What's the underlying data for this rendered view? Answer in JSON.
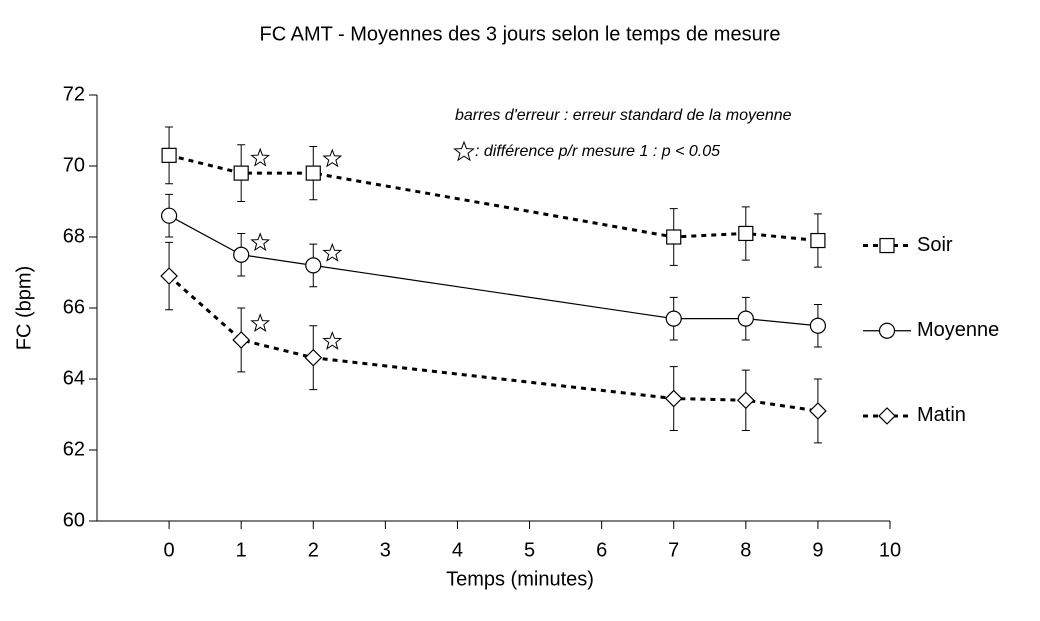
{
  "chart_data": {
    "type": "line",
    "title": "FC AMT - Moyennes des 3 jours selon le temps de mesure",
    "x_label": "Temps (minutes)",
    "y_label": "FC (bpm)",
    "annotations": [
      "barres d'erreur : erreur standard de la moyenne",
      ": différence p/r mesure 1 : p < 0.05"
    ],
    "x": [
      0,
      1,
      2,
      7,
      8,
      9
    ],
    "xlim": [
      -1,
      10
    ],
    "xticks": [
      0,
      1,
      2,
      3,
      4,
      5,
      6,
      7,
      8,
      9,
      10
    ],
    "ylim": [
      60,
      72
    ],
    "yticks": [
      60,
      62,
      64,
      66,
      68,
      70,
      72
    ],
    "grid": false,
    "legend": "right",
    "series": [
      {
        "name": "Soir",
        "color": "#000000",
        "marker": "square",
        "line_style": "dotted",
        "values": [
          70.3,
          69.8,
          69.8,
          68.0,
          68.1,
          67.9
        ],
        "errors": [
          0.8,
          0.8,
          0.75,
          0.8,
          0.75,
          0.75
        ],
        "significant": [
          1,
          2
        ]
      },
      {
        "name": "Moyenne",
        "color": "#000000",
        "marker": "circle",
        "line_style": "solid",
        "values": [
          68.6,
          67.5,
          67.2,
          65.7,
          65.7,
          65.5
        ],
        "errors": [
          0.6,
          0.6,
          0.6,
          0.6,
          0.6,
          0.6
        ],
        "significant": [
          1,
          2
        ]
      },
      {
        "name": "Matin",
        "color": "#000000",
        "marker": "diamond",
        "line_style": "dotted",
        "values": [
          66.9,
          65.1,
          64.6,
          63.45,
          63.4,
          63.1
        ],
        "errors": [
          0.95,
          0.9,
          0.9,
          0.9,
          0.85,
          0.9
        ],
        "significant": [
          1,
          2
        ]
      }
    ]
  }
}
